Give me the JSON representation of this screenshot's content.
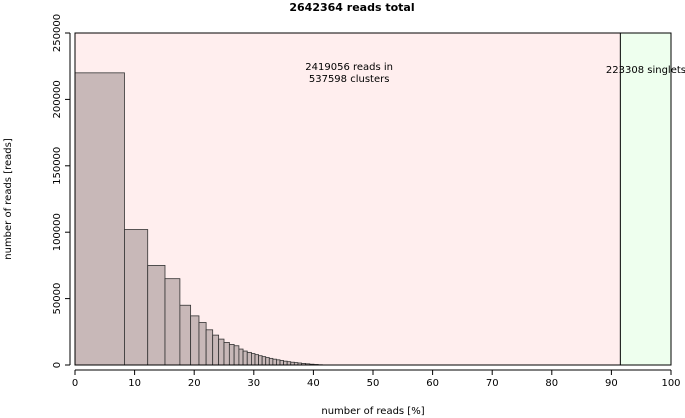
{
  "chart_data": {
    "type": "bar",
    "title": "2642364 reads total",
    "xlabel": "number of reads [%]",
    "ylabel": "number of reads [reads]",
    "xlim": [
      0,
      100
    ],
    "ylim": [
      0,
      250000
    ],
    "xticks": [
      0,
      10,
      20,
      30,
      40,
      50,
      60,
      70,
      80,
      90,
      100
    ],
    "yticks": [
      0,
      50000,
      100000,
      150000,
      200000,
      250000
    ],
    "regions": [
      {
        "from": 0,
        "to": 91.5,
        "color": "#ffeeee"
      },
      {
        "from": 91.5,
        "to": 100,
        "color": "#eeffee"
      }
    ],
    "annotations": [
      {
        "lines": [
          "2419056 reads in",
          "537598 clusters"
        ],
        "x": 46,
        "y": 222000
      },
      {
        "lines": [
          "223308 singlets"
        ],
        "x": 95.8,
        "y": 220000
      }
    ],
    "bars": [
      {
        "x0": 0,
        "x1": 8.3,
        "value": 220000
      },
      {
        "x0": 8.3,
        "x1": 12.2,
        "value": 102000
      },
      {
        "x0": 12.2,
        "x1": 15.1,
        "value": 75000
      },
      {
        "x0": 15.1,
        "x1": 17.6,
        "value": 65000
      },
      {
        "x0": 17.6,
        "x1": 19.4,
        "value": 45000
      },
      {
        "x0": 19.4,
        "x1": 20.8,
        "value": 37000
      },
      {
        "x0": 20.8,
        "x1": 22.0,
        "value": 32000
      },
      {
        "x0": 22.0,
        "x1": 23.1,
        "value": 26500
      },
      {
        "x0": 23.1,
        "x1": 24.1,
        "value": 22500
      },
      {
        "x0": 24.1,
        "x1": 25.0,
        "value": 19500
      },
      {
        "x0": 25.0,
        "x1": 25.9,
        "value": 17000
      },
      {
        "x0": 25.9,
        "x1": 26.7,
        "value": 15500
      },
      {
        "x0": 26.7,
        "x1": 27.5,
        "value": 14500
      },
      {
        "x0": 27.5,
        "x1": 28.2,
        "value": 12000
      },
      {
        "x0": 28.2,
        "x1": 28.9,
        "value": 10500
      },
      {
        "x0": 28.9,
        "x1": 29.6,
        "value": 9500
      },
      {
        "x0": 29.6,
        "x1": 30.2,
        "value": 8600
      },
      {
        "x0": 30.2,
        "x1": 30.8,
        "value": 7800
      },
      {
        "x0": 30.8,
        "x1": 31.4,
        "value": 7000
      },
      {
        "x0": 31.4,
        "x1": 32.0,
        "value": 6300
      },
      {
        "x0": 32.0,
        "x1": 32.6,
        "value": 5600
      },
      {
        "x0": 32.6,
        "x1": 33.2,
        "value": 5000
      },
      {
        "x0": 33.2,
        "x1": 33.8,
        "value": 4400
      },
      {
        "x0": 33.8,
        "x1": 34.4,
        "value": 3900
      },
      {
        "x0": 34.4,
        "x1": 35.0,
        "value": 3400
      },
      {
        "x0": 35.0,
        "x1": 35.6,
        "value": 2900
      },
      {
        "x0": 35.6,
        "x1": 36.2,
        "value": 2500
      },
      {
        "x0": 36.2,
        "x1": 36.8,
        "value": 2100
      },
      {
        "x0": 36.8,
        "x1": 37.4,
        "value": 1800
      },
      {
        "x0": 37.4,
        "x1": 38.0,
        "value": 1500
      },
      {
        "x0": 38.0,
        "x1": 38.7,
        "value": 1200
      },
      {
        "x0": 38.7,
        "x1": 39.4,
        "value": 900
      },
      {
        "x0": 39.4,
        "x1": 40.1,
        "value": 600
      },
      {
        "x0": 40.1,
        "x1": 40.8,
        "value": 400
      },
      {
        "x0": 40.8,
        "x1": 41.5,
        "value": 200
      }
    ],
    "bar_color": "#c8b8b8",
    "grid": false
  }
}
